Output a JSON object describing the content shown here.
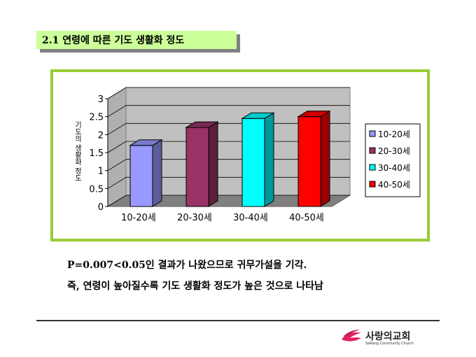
{
  "slide": {
    "title": "2.1 연령에 따른 기도 생활화 정도",
    "line1": "P=0.007<0.05인 결과가 나왔으므로 귀무가설을 기각.",
    "line2": "즉, 연령이 높아질수록 기도 생활화 정도가 높은 것으로 나타남"
  },
  "logo": {
    "name": "사랑의교회",
    "subtitle": "SaRang Community Church"
  },
  "chart_data": {
    "type": "bar",
    "title": "",
    "xlabel": "",
    "ylabel": "기도의 생활화 정도",
    "categories": [
      "10-20세",
      "20-30세",
      "30-40세",
      "40-50세"
    ],
    "values": [
      1.7,
      2.2,
      2.45,
      2.5
    ],
    "colors": [
      "#9999ff",
      "#993366",
      "#00ffff",
      "#ff0000"
    ],
    "ylim": [
      0,
      3
    ],
    "yticks": [
      0,
      0.5,
      1,
      1.5,
      2,
      2.5,
      3
    ],
    "grid": true,
    "legend": "right",
    "style": "3d"
  }
}
